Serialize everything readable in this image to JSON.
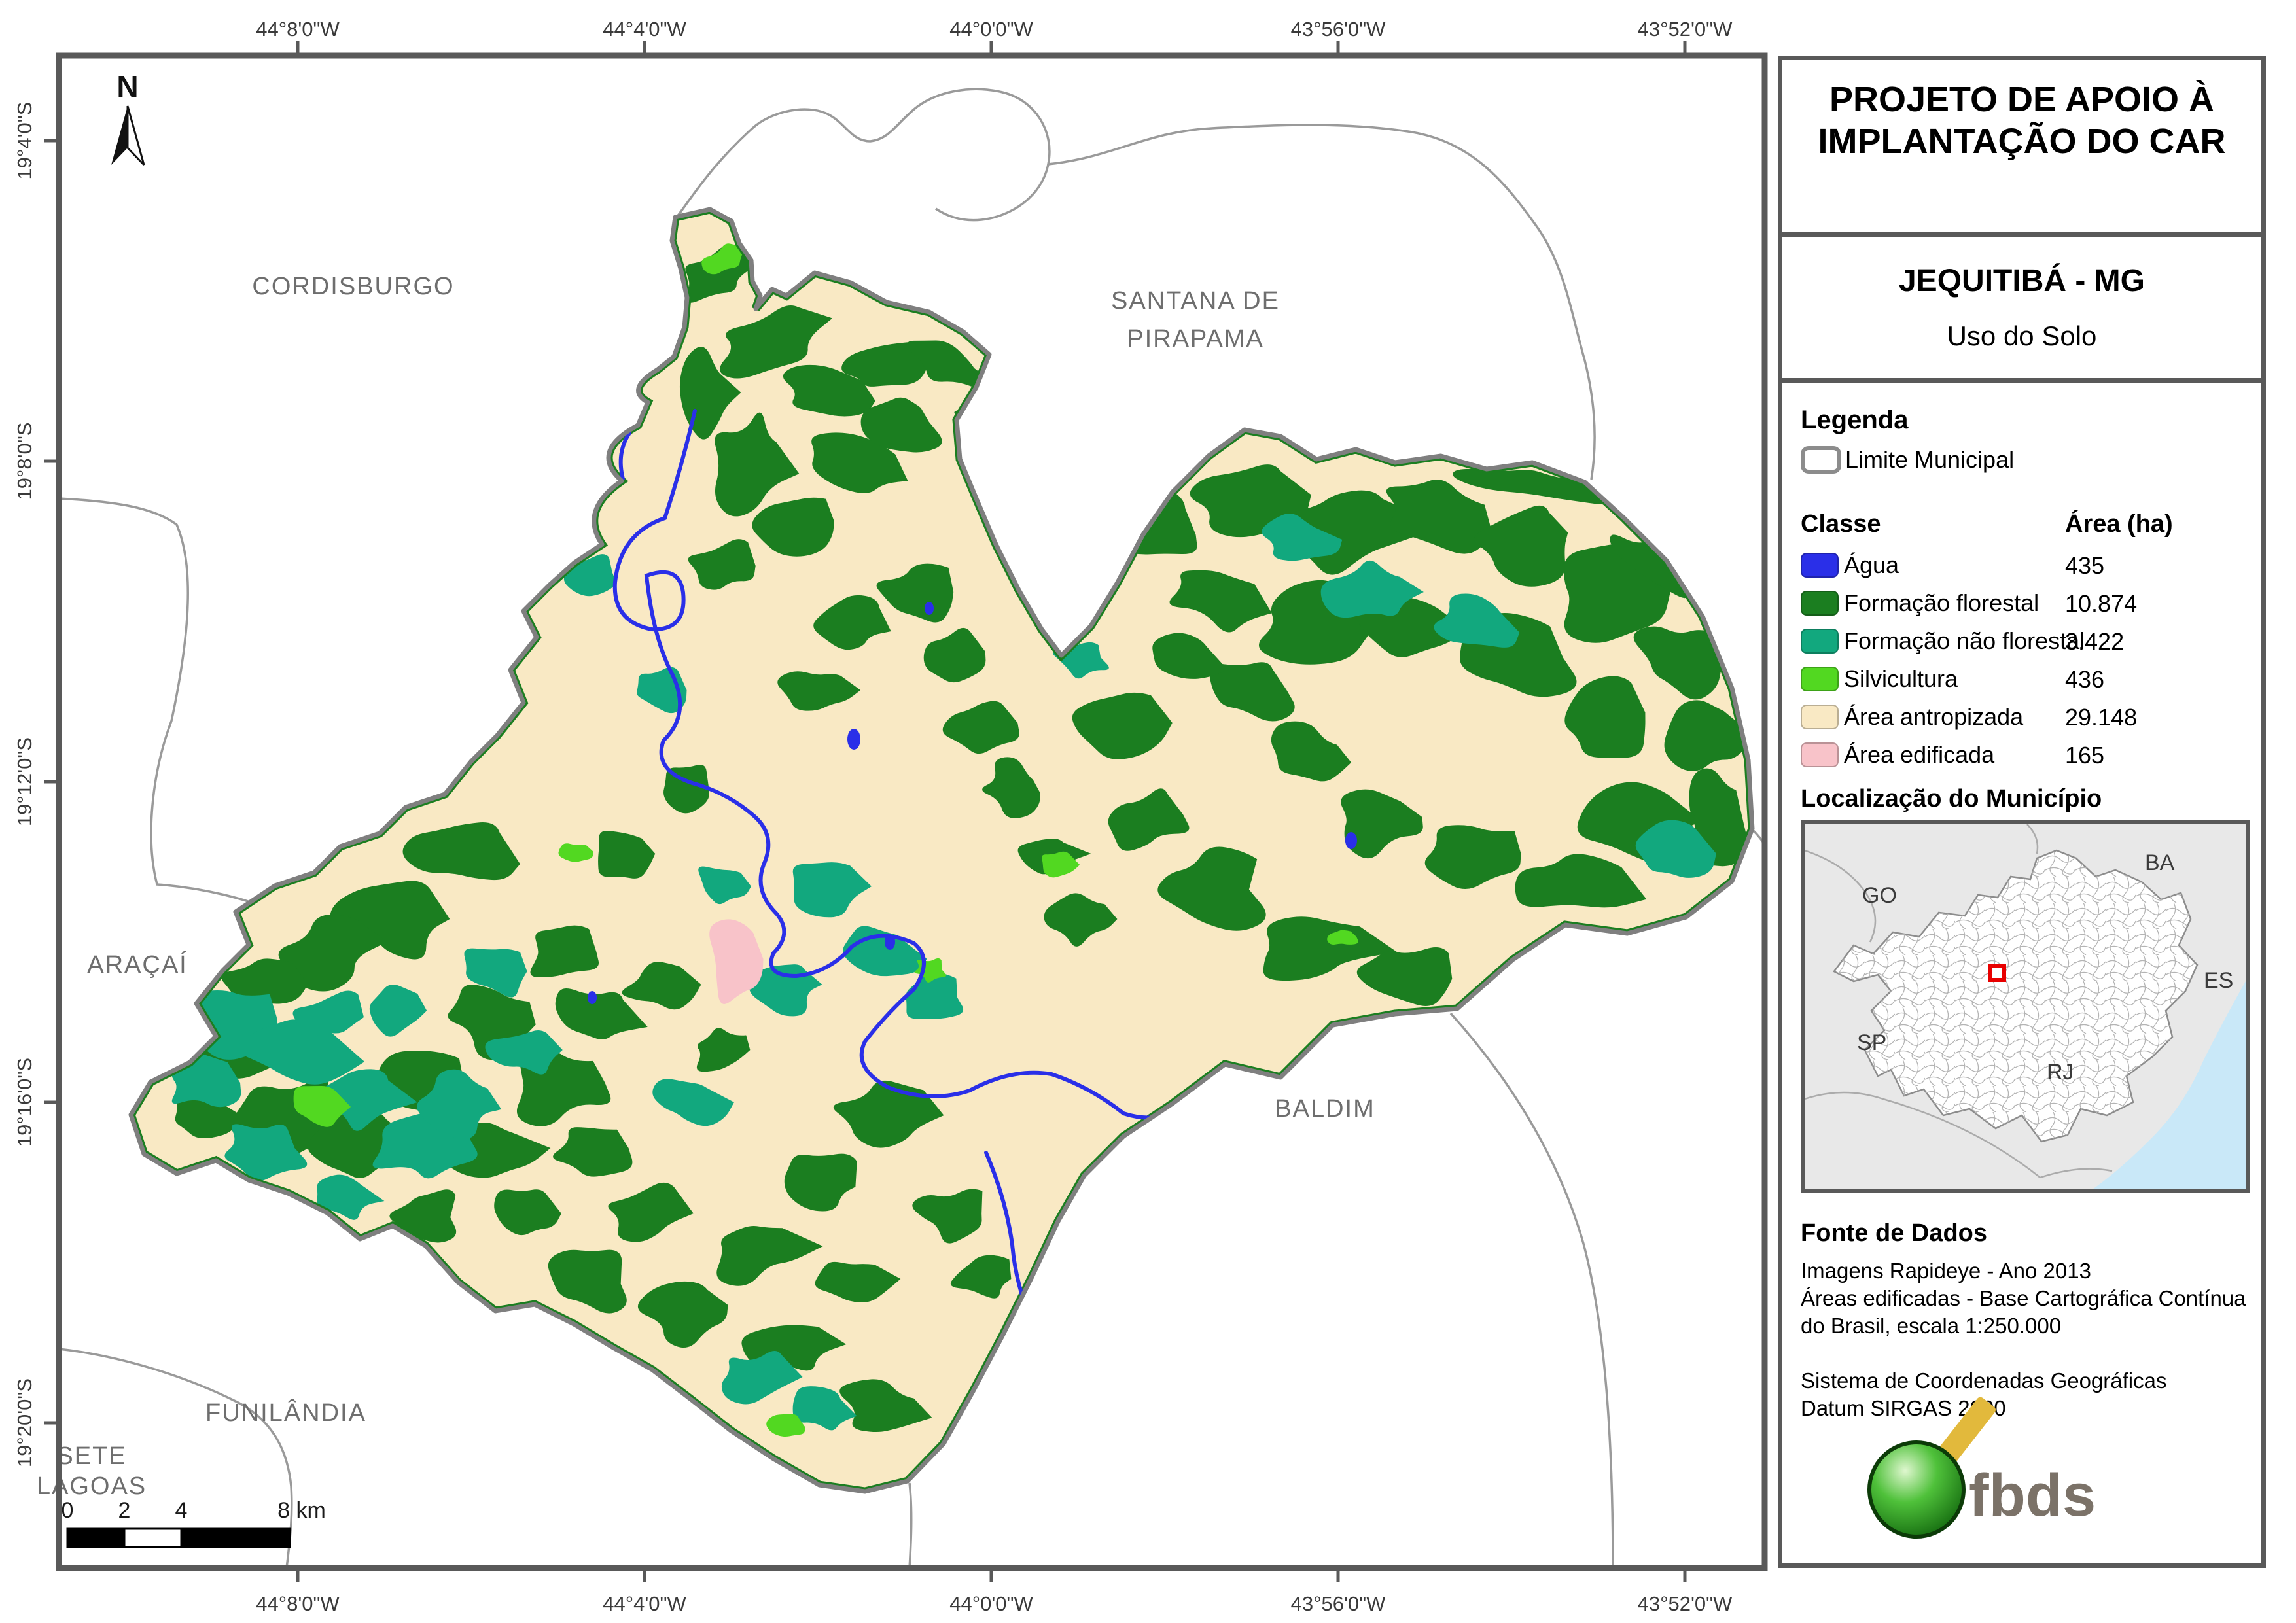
{
  "header": {
    "title_line1": "PROJETO DE APOIO À",
    "title_line2": "IMPLANTAÇÃO DO CAR",
    "municipality": "JEQUITIBÁ - MG",
    "subtitle": "Uso do Solo"
  },
  "legend": {
    "heading": "Legenda",
    "limit_label": "Limite Municipal",
    "col_class": "Classe",
    "col_area": "Área (ha)",
    "classes": [
      {
        "label": "Água",
        "area": "435",
        "color": "#2A2FE8"
      },
      {
        "label": "Formação florestal",
        "area": "10.874",
        "color": "#1B7E20"
      },
      {
        "label": "Formação não florestal",
        "area": "3.422",
        "color": "#12A87E"
      },
      {
        "label": "Silvicultura",
        "area": "436",
        "color": "#52D821"
      },
      {
        "label": "Área antropizada",
        "area": "29.148",
        "color": "#F9E9C4"
      },
      {
        "label": "Área edificada",
        "area": "165",
        "color": "#F8C3C9"
      }
    ]
  },
  "location": {
    "heading": "Localização do Município",
    "states": [
      "GO",
      "BA",
      "ES",
      "SP",
      "RJ"
    ]
  },
  "source": {
    "heading": "Fonte de Dados",
    "lines1": [
      "Imagens Rapideye - Ano 2013",
      "Áreas edificadas - Base Cartográfica Contínua",
      "do Brasil, escala 1:250.000"
    ],
    "lines2": [
      "Sistema de Coordenadas Geográficas",
      "Datum SIRGAS 2000"
    ]
  },
  "logo": {
    "text": "fbds"
  },
  "map_area": {
    "north_label": "N",
    "lon_ticks": [
      "44°8'0\"W",
      "44°4'0\"W",
      "44°0'0\"W",
      "43°56'0\"W",
      "43°52'0\"W"
    ],
    "lat_ticks": [
      "19°4'0\"S",
      "19°8'0\"S",
      "19°12'0\"S",
      "19°16'0\"S",
      "19°20'0\"S"
    ],
    "scalebar_labels": [
      "0",
      "2",
      "4",
      "8 km"
    ],
    "places": [
      {
        "lines": [
          "CORDISBURGO"
        ]
      },
      {
        "lines": [
          "SANTANA DE",
          "PIRAPAMA"
        ]
      },
      {
        "lines": [
          "ARAÇAÍ"
        ]
      },
      {
        "lines": [
          "BALDIM"
        ]
      },
      {
        "lines": [
          "FUNILÂNDIA"
        ]
      },
      {
        "lines": [
          "SETE",
          "LAGOAS"
        ]
      }
    ]
  },
  "colors": {
    "water": "#2A2FE8",
    "forest": "#1B7E20",
    "non_forest": "#12A87E",
    "silviculture": "#52D821",
    "anthropic": "#F9E9C4",
    "built": "#F8C3C9",
    "muni_outline": "#7F7F7F",
    "neighbor_line": "#9A9A9A",
    "frame": "#595959",
    "place_label": "#6E6E6E",
    "tick_label": "#3A3A3A",
    "marker_red": "#E80000",
    "ocean": "#C9E8F8"
  }
}
